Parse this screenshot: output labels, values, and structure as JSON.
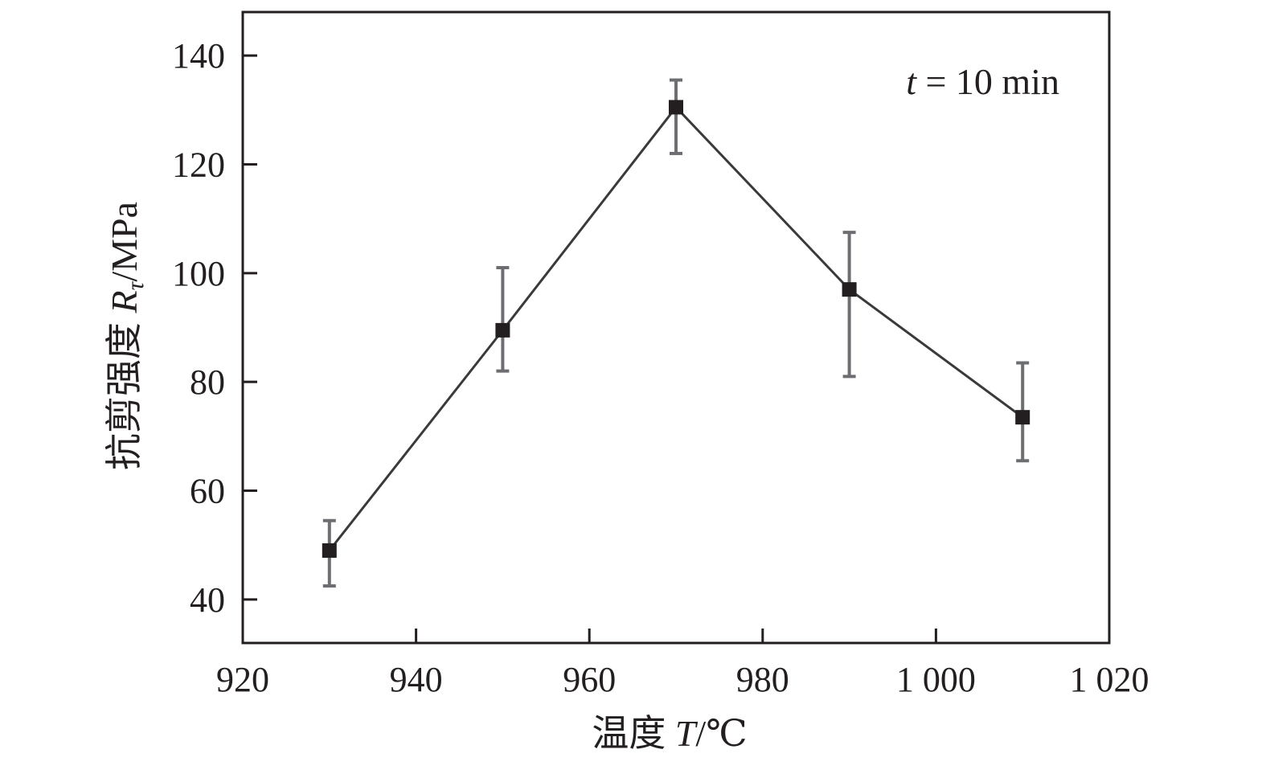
{
  "chart_data": {
    "type": "line",
    "title": "",
    "x": [
      930,
      950,
      970,
      990,
      1010
    ],
    "series": [
      {
        "values": [
          49,
          89.5,
          130.5,
          97,
          73.5
        ],
        "error_low": [
          42.5,
          82,
          122,
          81,
          65.5
        ],
        "error_high": [
          54.5,
          101,
          135.5,
          107.5,
          83.5
        ],
        "marker": "filled-square",
        "color": "#231f20"
      }
    ],
    "xlim": [
      920,
      1020
    ],
    "ylim": [
      32,
      148
    ],
    "xticks": [
      920,
      940,
      960,
      980,
      1000,
      1020
    ],
    "xtick_labels": [
      "920",
      "940",
      "960",
      "980",
      "1 000",
      "1 020"
    ],
    "yticks": [
      40,
      60,
      80,
      100,
      120,
      140
    ],
    "ytick_labels": [
      "40",
      "60",
      "80",
      "100",
      "120",
      "140"
    ],
    "xlabel": {
      "prefix": "温度 ",
      "symbol": "T",
      "unit": "/℃"
    },
    "ylabel": {
      "prefix": "抗剪强度 ",
      "symbol": "R",
      "subscript": "τ",
      "unit": "/MPa"
    },
    "annotation": {
      "symbol": "t",
      "text": " = 10 min"
    },
    "grid": false,
    "legend": "none"
  }
}
